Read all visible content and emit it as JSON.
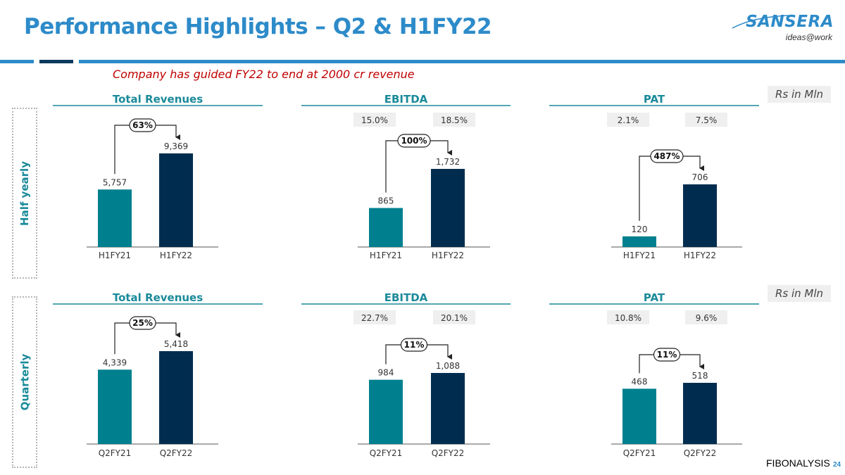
{
  "title": "Performance Highlights – Q2 & H1FY22",
  "logo": {
    "name": "SANSERA",
    "tagline": "ideas@work"
  },
  "guidance": "Company has guided FY22 to end at 2000 cr revenue",
  "rows": {
    "half_yearly_label": "Half yearly",
    "quarterly_label": "Quarterly"
  },
  "units_label": "Rs in Mln",
  "colors": {
    "prior": "#00808F",
    "current": "#002D4F",
    "accent": "#2D8BC9",
    "header_line": "#1a8a9a",
    "red": "#C00000"
  },
  "chart_data": [
    {
      "type": "bar",
      "title": "Total Revenues",
      "row": "half_yearly",
      "categories": [
        "H1FY21",
        "H1FY22"
      ],
      "values": [
        5757,
        9369
      ],
      "value_labels": [
        "5,757",
        "9,369"
      ],
      "growth": "63%",
      "margins": [],
      "ylim": [
        0,
        9369
      ]
    },
    {
      "type": "bar",
      "title": "EBITDA",
      "row": "half_yearly",
      "categories": [
        "H1FY21",
        "H1FY22"
      ],
      "values": [
        865,
        1732
      ],
      "value_labels": [
        "865",
        "1,732"
      ],
      "growth": "100%",
      "margins": [
        "15.0%",
        "18.5%"
      ],
      "ylim": [
        0,
        1732
      ]
    },
    {
      "type": "bar",
      "title": "PAT",
      "row": "half_yearly",
      "categories": [
        "H1FY21",
        "H1FY22"
      ],
      "values": [
        120,
        706
      ],
      "value_labels": [
        "120",
        "706"
      ],
      "growth": "487%",
      "margins": [
        "2.1%",
        "7.5%"
      ],
      "ylim": [
        0,
        706
      ]
    },
    {
      "type": "bar",
      "title": "Total Revenues",
      "row": "quarterly",
      "categories": [
        "Q2FY21",
        "Q2FY22"
      ],
      "values": [
        4339,
        5418
      ],
      "value_labels": [
        "4,339",
        "5,418"
      ],
      "growth": "25%",
      "margins": [],
      "ylim": [
        0,
        5418
      ]
    },
    {
      "type": "bar",
      "title": "EBITDA",
      "row": "quarterly",
      "categories": [
        "Q2FY21",
        "Q2FY22"
      ],
      "values": [
        984,
        1088
      ],
      "value_labels": [
        "984",
        "1,088"
      ],
      "growth": "11%",
      "margins": [
        "22.7%",
        "20.1%"
      ],
      "ylim": [
        0,
        1088
      ]
    },
    {
      "type": "bar",
      "title": "PAT",
      "row": "quarterly",
      "categories": [
        "Q2FY21",
        "Q2FY22"
      ],
      "values": [
        468,
        518
      ],
      "value_labels": [
        "468",
        "518"
      ],
      "growth": "11%",
      "margins": [
        "10.8%",
        "9.6%"
      ],
      "ylim": [
        0,
        518
      ]
    }
  ],
  "footer": "FIBONALYSIS",
  "page_number": "24"
}
